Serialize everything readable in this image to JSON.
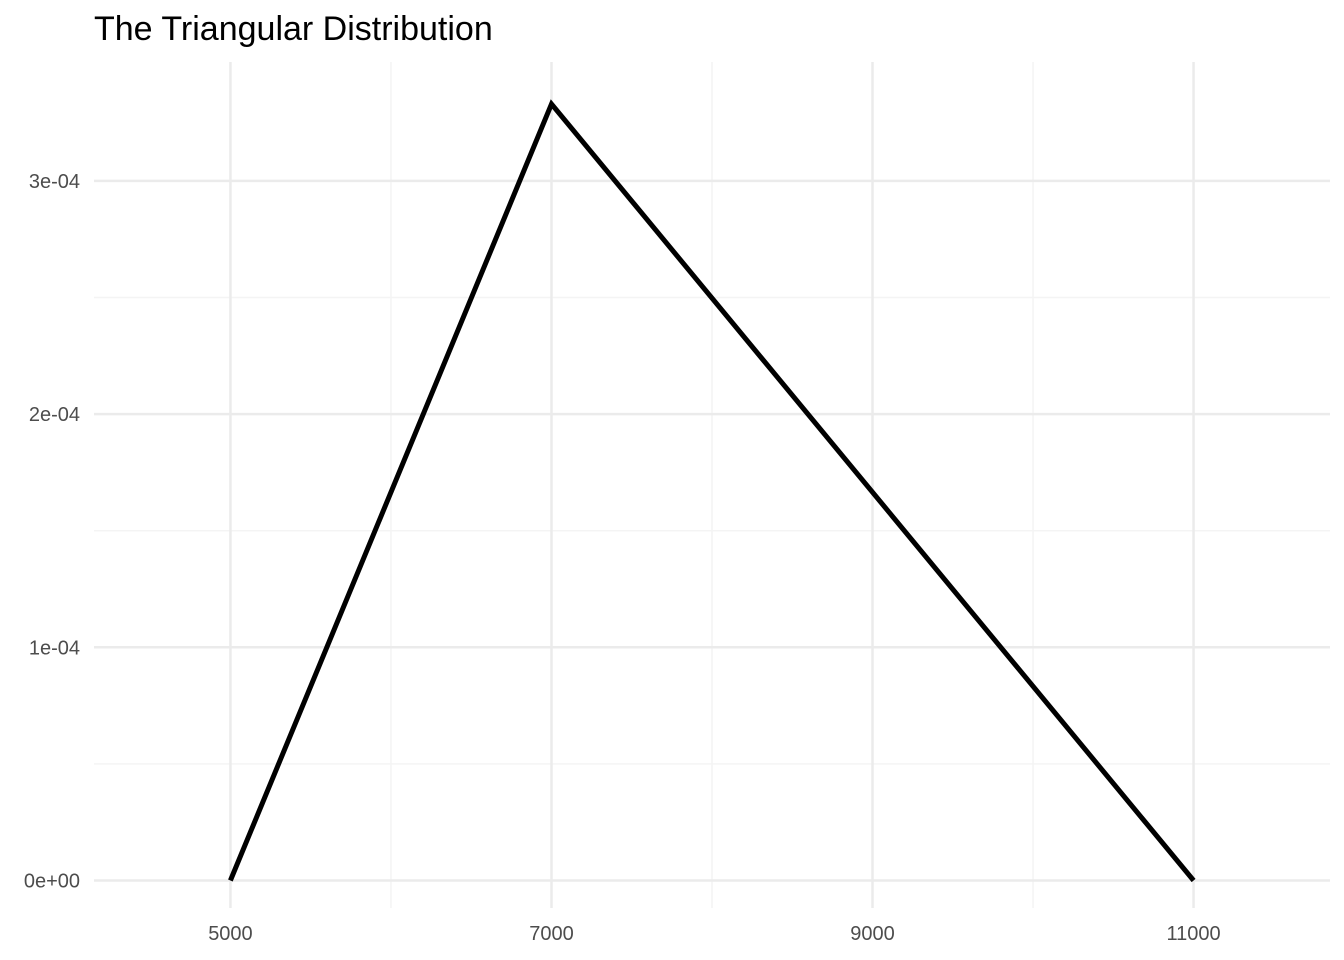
{
  "chart_data": {
    "type": "line",
    "title": "The Triangular Distribution",
    "xlabel": "",
    "ylabel": "",
    "xlim": [
      4150,
      11850
    ],
    "ylim": [
      -1.18e-05,
      0.000351
    ],
    "x_ticks": [
      {
        "value": 5000,
        "label": "5000"
      },
      {
        "value": 7000,
        "label": "7000"
      },
      {
        "value": 9000,
        "label": "9000"
      },
      {
        "value": 11000,
        "label": "11000"
      }
    ],
    "x_minor": [
      6000,
      8000,
      10000
    ],
    "y_ticks": [
      {
        "value": 0,
        "label": "0e+00"
      },
      {
        "value": 0.0001,
        "label": "1e-04"
      },
      {
        "value": 0.0002,
        "label": "2e-04"
      },
      {
        "value": 0.0003,
        "label": "3e-04"
      }
    ],
    "y_minor": [
      5e-05,
      0.00015,
      0.00025
    ],
    "grid": true,
    "series": [
      {
        "x": [
          5000,
          7000,
          11000
        ],
        "y": [
          0,
          0.000333,
          0
        ]
      }
    ],
    "colors": {
      "line": "#000000",
      "grid_major": "#ebebeb",
      "grid_minor": "#f4f4f4",
      "tick_text": "#4d4d4d"
    }
  }
}
